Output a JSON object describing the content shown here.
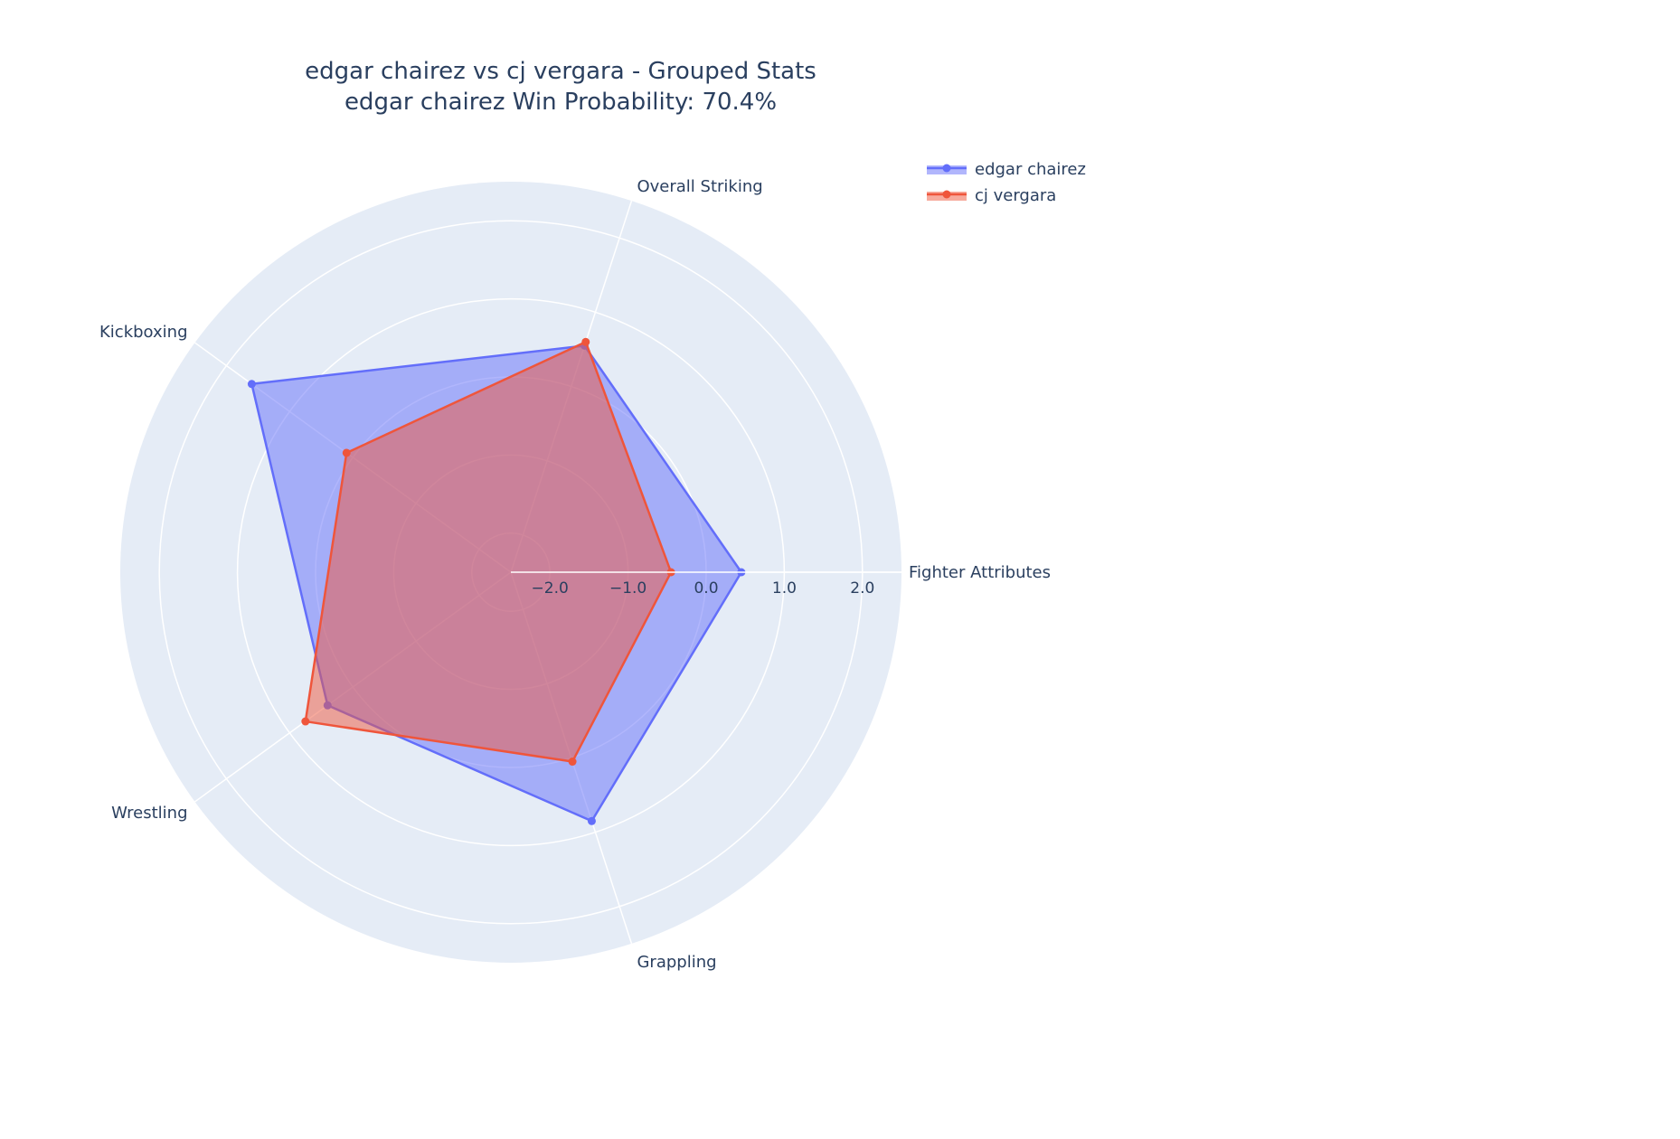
{
  "chart_data": {
    "type": "radar",
    "title": "edgar chairez vs cj vergara - Grouped Stats",
    "subtitle": "edgar chairez Win Probability: 70.4%",
    "categories": [
      "Fighter Attributes",
      "Overall Striking",
      "Kickboxing",
      "Wrestling",
      "Grappling"
    ],
    "radial_range": [
      -2.5,
      2.5
    ],
    "radial_ticks": [
      -2.0,
      -1.0,
      0.0,
      1.0,
      2.0
    ],
    "radial_tick_labels": [
      "−2.0",
      "−1.0",
      "0.0",
      "1.0",
      "2.0"
    ],
    "grid": true,
    "legend_position": "top-right",
    "series": [
      {
        "name": "edgar chairez",
        "color": "#636efa",
        "values": [
          0.45,
          0.55,
          1.6,
          0.4,
          0.85
        ]
      },
      {
        "name": "cj vergara",
        "color": "#ef553b",
        "values": [
          -0.45,
          0.6,
          0.1,
          0.75,
          0.05
        ]
      }
    ]
  }
}
